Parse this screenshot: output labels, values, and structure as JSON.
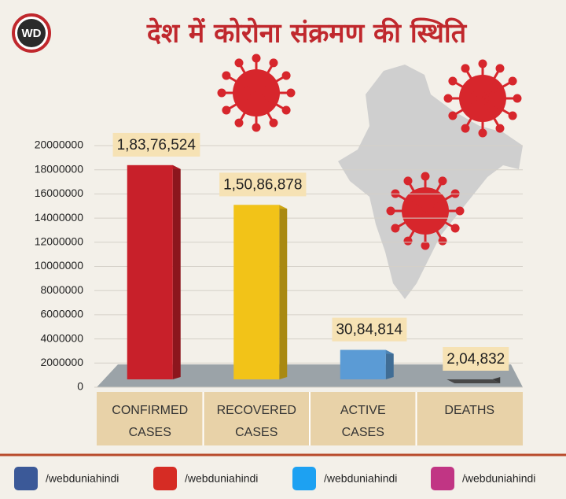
{
  "logo": "WD",
  "chart_data": {
    "type": "bar",
    "title": "देश में कोरोना संक्रमण की स्थिति",
    "categories": [
      "CONFIRMED CASES",
      "RECOVERED CASES",
      "ACTIVE CASES",
      "DEATHS"
    ],
    "values": [
      18376524,
      15086878,
      3084814,
      204832
    ],
    "value_labels": [
      "1,83,76,524",
      "1,50,86,878",
      "30,84,814",
      "2,04,832"
    ],
    "colors": [
      "#c8202a",
      "#f2c318",
      "#5b9bd5",
      "#555555"
    ],
    "ylim": [
      0,
      20000000
    ],
    "yticks": [
      0,
      2000000,
      4000000,
      6000000,
      8000000,
      10000000,
      12000000,
      14000000,
      16000000,
      18000000,
      20000000
    ],
    "grid": true
  },
  "footer": [
    "/webduniahindi",
    "/webduniahindi",
    "/webduniahindi",
    "/webduniahindi"
  ]
}
